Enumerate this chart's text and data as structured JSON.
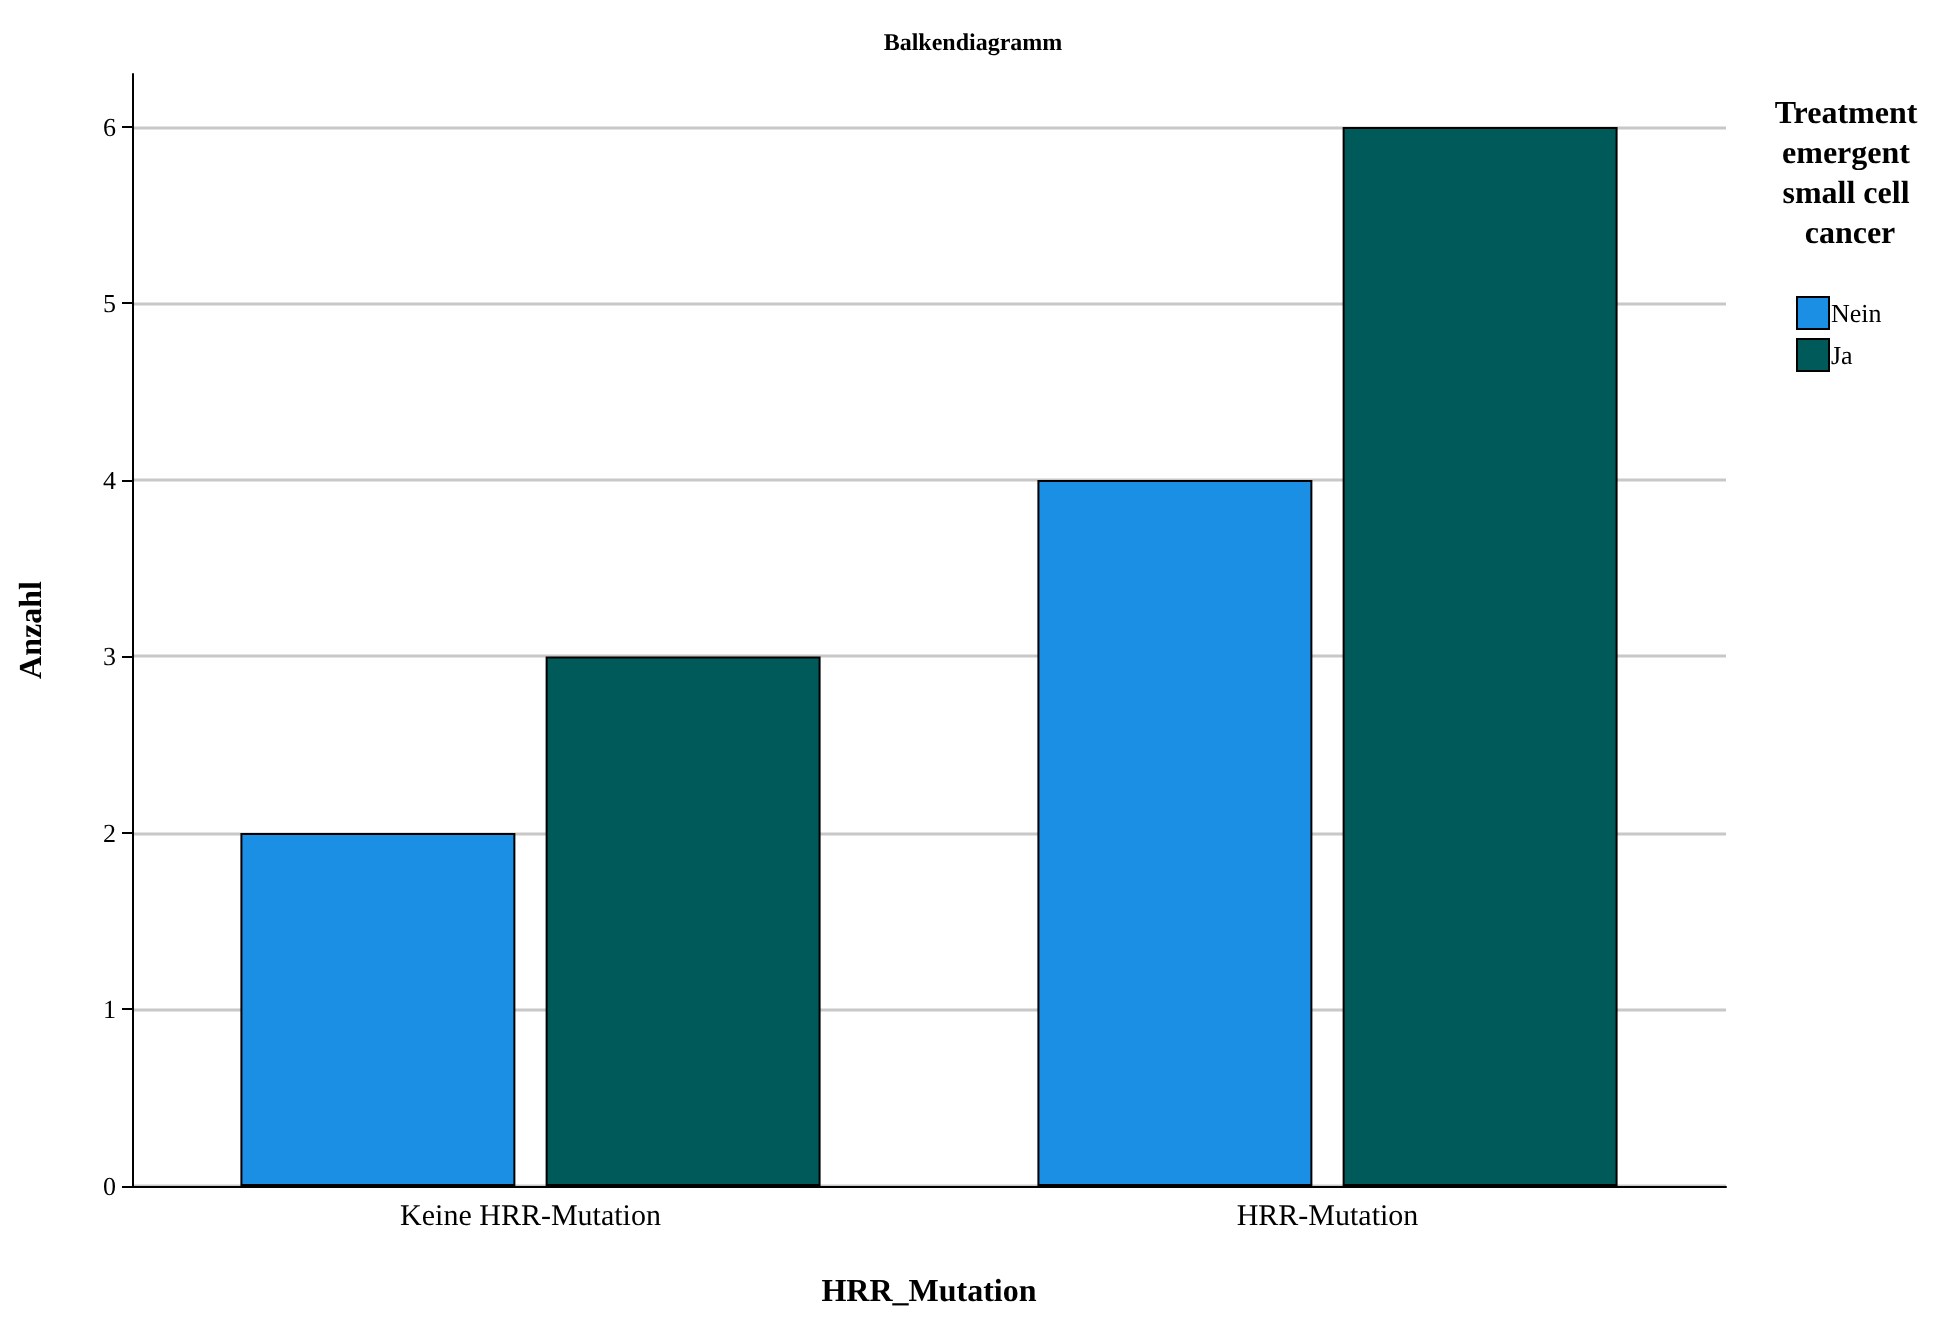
{
  "chart_data": {
    "type": "bar",
    "title": "Balkendiagramm",
    "xlabel": "HRR_Mutation",
    "ylabel": "Anzahl",
    "legend_title": "Treatment emergent small cell cancer",
    "categories": [
      "Keine HRR-Mutation",
      "HRR-Mutation"
    ],
    "series": [
      {
        "name": "Nein",
        "color": "#1a8fe3",
        "values": [
          2,
          4
        ]
      },
      {
        "name": "Ja",
        "color": "#005a5a",
        "values": [
          3,
          6
        ]
      }
    ],
    "ylim": [
      0,
      6.3
    ],
    "yticks": [
      0,
      1,
      2,
      3,
      4,
      5,
      6
    ],
    "grid": "y",
    "legend": "top right"
  }
}
